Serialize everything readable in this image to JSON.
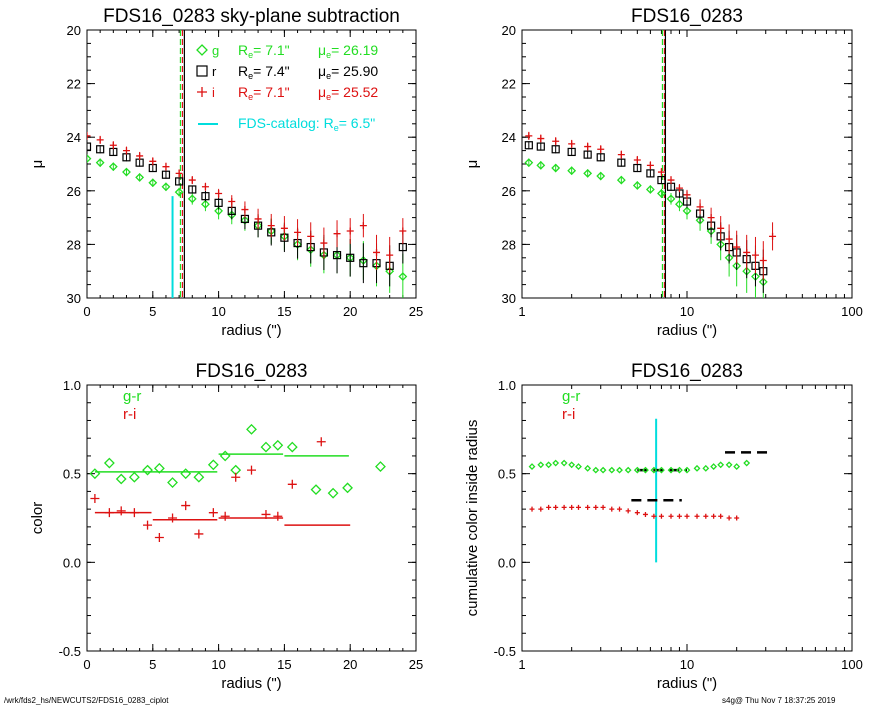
{
  "footer": {
    "left": "/wrk/fds2_hs/NEWCUTS2/FDS16_0283_ciplot",
    "right": "s4g@  Thu Nov  7 18:37:25 2019"
  },
  "colors": {
    "g": "#22dd22",
    "r_band": "#000000",
    "i": "#dd1111",
    "catalog": "#00dddd",
    "gr": "#22dd22",
    "ri": "#dd1111"
  },
  "chart_data": [
    {
      "id": "p1",
      "type": "scatter",
      "title": "FDS16_0283 sky-plane subtraction",
      "xlabel": "radius (\")",
      "ylabel": "μ",
      "xlim": [
        0,
        25
      ],
      "ylim": [
        30,
        20
      ],
      "xticks": [
        0,
        5,
        10,
        15,
        20,
        25
      ],
      "yticks": [
        20,
        22,
        24,
        26,
        28,
        30
      ],
      "legend": [
        {
          "band": "g",
          "re_label": "R",
          "re_sub": "e",
          "re_value": "=   7.1\"",
          "mu_label": "μ",
          "mu_sub": "e",
          "mu_value": "= 26.19",
          "color": "#22dd22",
          "marker": "diamond"
        },
        {
          "band": "r",
          "re_label": "R",
          "re_sub": "e",
          "re_value": "=   7.4\"",
          "mu_label": "μ",
          "mu_sub": "e",
          "mu_value": "= 25.90",
          "color": "#000000",
          "marker": "square"
        },
        {
          "band": "i",
          "re_label": "R",
          "re_sub": "e",
          "re_value": "=   7.1\"",
          "mu_label": "μ",
          "mu_sub": "e",
          "mu_value": "= 25.52",
          "color": "#dd1111",
          "marker": "plus"
        }
      ],
      "catalog_label": "FDS-catalog: R",
      "catalog_sub": "e",
      "catalog_value": "=   6.5\"",
      "vlines": [
        {
          "x": 6.5,
          "color": "#00dddd",
          "from": 26.2,
          "to": 30
        },
        {
          "x": 7.1,
          "color": "#22dd22",
          "dashed": true
        },
        {
          "x": 7.1,
          "color": "#dd1111",
          "dashed": true
        },
        {
          "x": 7.4,
          "color": "#000000"
        }
      ],
      "series": [
        {
          "name": "g",
          "color": "#22dd22",
          "marker": "diamond",
          "x": [
            0,
            1,
            2,
            3,
            4,
            5,
            6,
            7,
            8,
            9,
            10,
            11,
            12,
            13,
            14,
            15,
            16,
            17,
            18,
            19,
            20,
            21,
            22,
            23,
            24
          ],
          "y": [
            24.8,
            24.95,
            25.1,
            25.3,
            25.5,
            25.7,
            25.85,
            26.05,
            26.3,
            26.5,
            26.75,
            26.9,
            27.1,
            27.3,
            27.5,
            27.7,
            28.0,
            28.2,
            28.4,
            28.4,
            28.5,
            28.6,
            28.8,
            29.0,
            29.2
          ]
        },
        {
          "name": "r",
          "color": "#000000",
          "marker": "square",
          "x": [
            0,
            1,
            2,
            3,
            4,
            5,
            6,
            7,
            8,
            9,
            10,
            11,
            12,
            13,
            14,
            15,
            16,
            17,
            18,
            19,
            20,
            21,
            22,
            23,
            24
          ],
          "y": [
            24.35,
            24.45,
            24.55,
            24.75,
            24.95,
            25.15,
            25.4,
            25.65,
            25.95,
            26.2,
            26.45,
            26.75,
            27.05,
            27.3,
            27.55,
            27.75,
            27.95,
            28.1,
            28.3,
            28.4,
            28.5,
            28.7,
            28.7,
            28.8,
            28.1
          ]
        },
        {
          "name": "i",
          "color": "#dd1111",
          "marker": "plus",
          "x": [
            0,
            1,
            2,
            3,
            4,
            5,
            6,
            7,
            8,
            9,
            10,
            11,
            12,
            13,
            14,
            15,
            16,
            17,
            18,
            19,
            20,
            21,
            22,
            23,
            24
          ],
          "y": [
            23.95,
            24.1,
            24.3,
            24.5,
            24.7,
            24.9,
            25.1,
            25.35,
            25.6,
            25.85,
            26.1,
            26.4,
            26.7,
            27.05,
            27.3,
            27.4,
            27.55,
            27.7,
            27.95,
            27.6,
            27.5,
            27.3,
            28.3,
            28.4,
            27.5
          ]
        }
      ]
    },
    {
      "id": "p2",
      "type": "scatter",
      "title": "FDS16_0283",
      "xlabel": "radius (\")",
      "ylabel": "μ",
      "xscale": "log",
      "xlim": [
        1,
        100
      ],
      "ylim": [
        30,
        20
      ],
      "xticks": [
        1,
        10,
        100
      ],
      "yticks": [
        20,
        22,
        24,
        26,
        28,
        30
      ],
      "vlines": [
        {
          "x": 7.1,
          "color": "#22dd22",
          "dashed": true
        },
        {
          "x": 7.1,
          "color": "#dd1111",
          "dashed": true
        },
        {
          "x": 7.4,
          "color": "#000000"
        }
      ],
      "series": [
        {
          "name": "g",
          "color": "#22dd22",
          "marker": "diamond",
          "x": [
            1.1,
            1.3,
            1.6,
            2,
            2.5,
            3,
            4,
            5,
            6,
            7,
            8,
            9,
            10,
            12,
            14,
            16,
            18,
            20,
            23,
            26,
            29
          ],
          "y": [
            24.95,
            25.05,
            25.15,
            25.25,
            25.35,
            25.45,
            25.6,
            25.8,
            25.95,
            26.1,
            26.3,
            26.5,
            26.75,
            27.1,
            27.5,
            28.0,
            28.5,
            28.8,
            29.0,
            29.2,
            29.4
          ]
        },
        {
          "name": "r",
          "color": "#000000",
          "marker": "square",
          "x": [
            1.1,
            1.3,
            1.6,
            2,
            2.5,
            3,
            4,
            5,
            6,
            7,
            8,
            9,
            10,
            12,
            14,
            16,
            18,
            20,
            23,
            26,
            29
          ],
          "y": [
            24.3,
            24.35,
            24.45,
            24.55,
            24.65,
            24.75,
            24.95,
            25.15,
            25.35,
            25.6,
            25.85,
            26.1,
            26.4,
            26.85,
            27.3,
            27.7,
            28.1,
            28.3,
            28.55,
            28.8,
            29.0
          ]
        },
        {
          "name": "i",
          "color": "#dd1111",
          "marker": "plus",
          "x": [
            1.1,
            1.3,
            1.6,
            2,
            2.5,
            3,
            4,
            5,
            6,
            7,
            8,
            9,
            10,
            12,
            14,
            16,
            18,
            20,
            23,
            26,
            29,
            33
          ],
          "y": [
            23.95,
            24.05,
            24.15,
            24.25,
            24.35,
            24.45,
            24.65,
            24.85,
            25.05,
            25.3,
            25.6,
            25.9,
            26.15,
            26.6,
            27.0,
            27.4,
            27.8,
            28.1,
            28.3,
            28.4,
            28.6,
            27.7
          ]
        }
      ]
    },
    {
      "id": "p3",
      "type": "scatter",
      "title": "FDS16_0283",
      "xlabel": "radius (\")",
      "ylabel": "color",
      "xlim": [
        0,
        25
      ],
      "ylim": [
        -0.5,
        1.0
      ],
      "xticks": [
        0,
        5,
        10,
        15,
        20,
        25
      ],
      "yticks": [
        -0.5,
        0.0,
        0.5,
        1.0
      ],
      "legend": [
        {
          "label": "g-r",
          "color": "#22dd22"
        },
        {
          "label": "r-i",
          "color": "#dd1111"
        }
      ],
      "series": [
        {
          "name": "g-r",
          "color": "#22dd22",
          "marker": "diamond",
          "x": [
            0.6,
            1.7,
            2.6,
            3.6,
            4.6,
            5.5,
            6.5,
            7.5,
            8.5,
            9.6,
            10.5,
            11.3,
            12.5,
            13.6,
            14.5,
            15.6,
            17.4,
            18.7,
            19.8,
            22.3
          ],
          "y": [
            0.5,
            0.56,
            0.47,
            0.48,
            0.52,
            0.53,
            0.45,
            0.5,
            0.48,
            0.55,
            0.6,
            0.52,
            0.75,
            0.65,
            0.66,
            0.65,
            0.41,
            0.39,
            0.42,
            0.54
          ]
        },
        {
          "name": "r-i",
          "color": "#dd1111",
          "marker": "plus",
          "x": [
            0.6,
            1.7,
            2.6,
            3.6,
            4.6,
            5.5,
            6.5,
            7.5,
            8.5,
            9.6,
            10.5,
            11.3,
            12.5,
            13.6,
            14.5,
            15.6,
            17.8
          ],
          "y": [
            0.36,
            0.28,
            0.29,
            0.28,
            0.21,
            0.14,
            0.25,
            0.32,
            0.16,
            0.28,
            0.26,
            0.48,
            0.52,
            0.27,
            0.26,
            0.44,
            0.68
          ]
        }
      ],
      "segments": [
        {
          "x0": 0.6,
          "x1": 9.9,
          "y": 0.51,
          "color": "#22dd22"
        },
        {
          "x0": 10.0,
          "x1": 14.9,
          "y": 0.61,
          "color": "#22dd22"
        },
        {
          "x0": 15.0,
          "x1": 19.9,
          "y": 0.6,
          "color": "#22dd22"
        },
        {
          "x0": 0.6,
          "x1": 4.9,
          "y": 0.28,
          "color": "#dd1111"
        },
        {
          "x0": 5.0,
          "x1": 9.9,
          "y": 0.24,
          "color": "#dd1111"
        },
        {
          "x0": 10.0,
          "x1": 14.9,
          "y": 0.25,
          "color": "#dd1111"
        },
        {
          "x0": 15.0,
          "x1": 20.0,
          "y": 0.21,
          "color": "#dd1111"
        }
      ]
    },
    {
      "id": "p4",
      "type": "scatter",
      "title": "FDS16_0283",
      "xlabel": "radius (\")",
      "ylabel": "cumulative color inside radius",
      "xscale": "log",
      "xlim": [
        1,
        100
      ],
      "ylim": [
        -0.5,
        1.0
      ],
      "xticks": [
        1,
        10,
        100
      ],
      "yticks": [
        -0.5,
        0.0,
        0.5,
        1.0
      ],
      "legend": [
        {
          "label": "g-r",
          "color": "#22dd22"
        },
        {
          "label": "r-i",
          "color": "#dd1111"
        }
      ],
      "vlines": [
        {
          "x": 6.5,
          "color": "#00dddd",
          "from": 0.0,
          "to": 0.81
        }
      ],
      "series": [
        {
          "name": "g-r",
          "color": "#22dd22",
          "marker": "diamond",
          "x": [
            1.15,
            1.3,
            1.45,
            1.6,
            1.8,
            2.0,
            2.2,
            2.5,
            2.8,
            3.1,
            3.5,
            3.9,
            4.4,
            5.0,
            5.6,
            6.3,
            7.0,
            8.0,
            9.0,
            10.0,
            11.5,
            13,
            14.5,
            16,
            18,
            20,
            23
          ],
          "y": [
            0.54,
            0.55,
            0.55,
            0.56,
            0.56,
            0.55,
            0.54,
            0.53,
            0.52,
            0.52,
            0.52,
            0.52,
            0.52,
            0.52,
            0.52,
            0.52,
            0.52,
            0.52,
            0.52,
            0.52,
            0.53,
            0.53,
            0.54,
            0.55,
            0.55,
            0.54,
            0.56
          ]
        },
        {
          "name": "r-i",
          "color": "#dd1111",
          "marker": "plus",
          "x": [
            1.15,
            1.3,
            1.45,
            1.6,
            1.8,
            2.0,
            2.2,
            2.5,
            2.8,
            3.1,
            3.5,
            3.9,
            4.4,
            5.0,
            5.6,
            6.3,
            7.0,
            8.0,
            9.0,
            10.0,
            11.5,
            13,
            14.5,
            16,
            18,
            20
          ],
          "y": [
            0.3,
            0.3,
            0.31,
            0.31,
            0.31,
            0.31,
            0.31,
            0.31,
            0.31,
            0.31,
            0.3,
            0.3,
            0.29,
            0.28,
            0.27,
            0.26,
            0.26,
            0.26,
            0.26,
            0.26,
            0.26,
            0.26,
            0.26,
            0.26,
            0.25,
            0.25
          ]
        }
      ],
      "segments": [
        {
          "x0": 5.0,
          "x1": 10.0,
          "y": 0.52,
          "color": "#000000",
          "dashed": true
        },
        {
          "x0": 4.6,
          "x1": 9.3,
          "y": 0.35,
          "color": "#000000",
          "dashed": true
        },
        {
          "x0": 17.0,
          "x1": 33.0,
          "y": 0.62,
          "color": "#000000",
          "dashed": true
        }
      ]
    }
  ]
}
